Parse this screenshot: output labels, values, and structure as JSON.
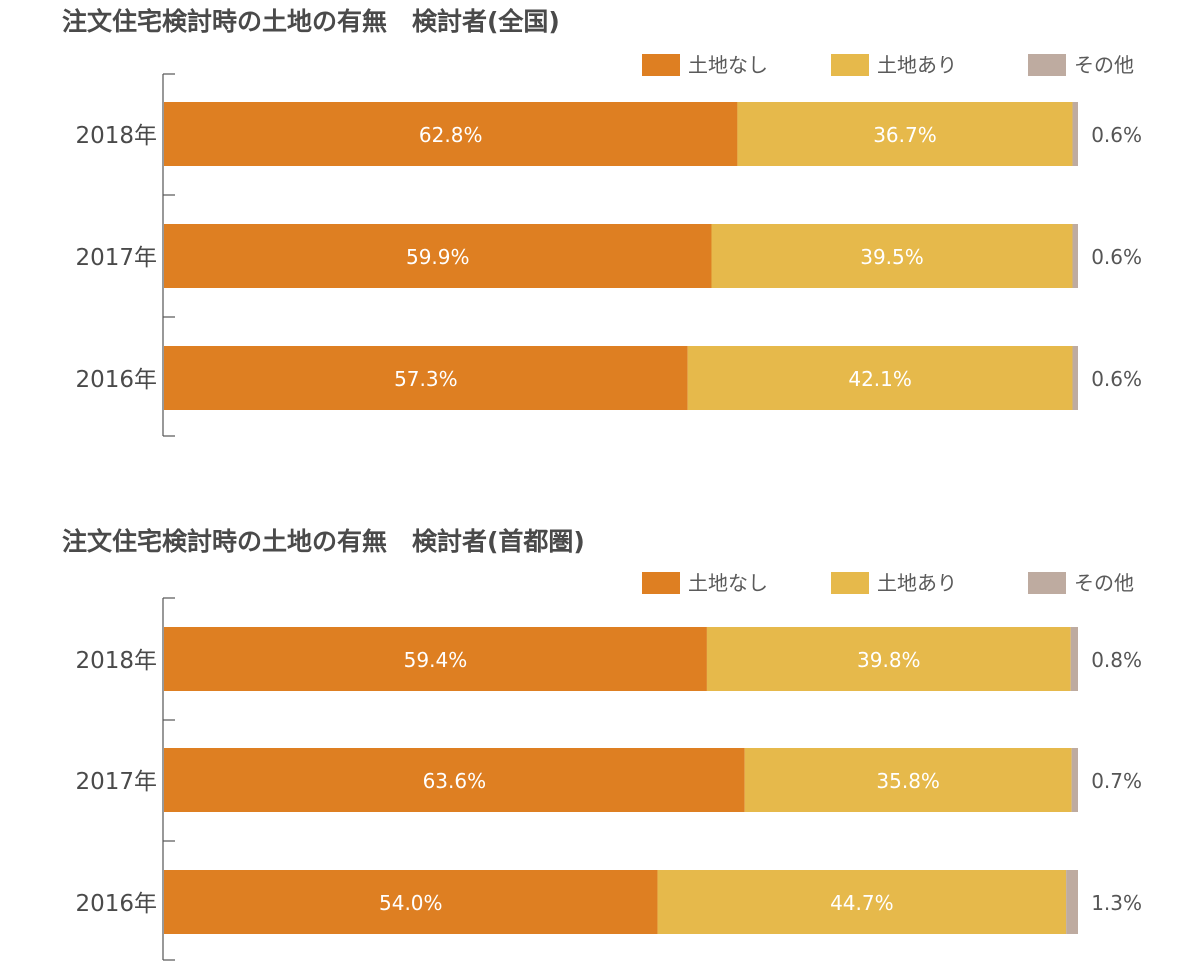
{
  "chart_data": [
    {
      "type": "bar",
      "orientation": "horizontal",
      "stacked": true,
      "title": "注文住宅検討時の土地の有無　検討者(全国)",
      "categories": [
        "2018年",
        "2017年",
        "2016年"
      ],
      "series": [
        {
          "name": "土地なし",
          "color": "#DE7F22",
          "values": [
            62.8,
            59.9,
            57.3
          ],
          "labels": [
            "62.8%",
            "59.9%",
            "57.3%"
          ]
        },
        {
          "name": "土地あり",
          "color": "#E6B94B",
          "values": [
            36.7,
            39.5,
            42.1
          ],
          "labels": [
            "36.7%",
            "39.5%",
            "42.1%"
          ]
        },
        {
          "name": "その他",
          "color": "#BEABA0",
          "values": [
            0.6,
            0.6,
            0.6
          ],
          "labels": [
            "0.6%",
            "0.6%",
            "0.6%"
          ]
        }
      ],
      "xlim": [
        0,
        100
      ],
      "legend": "top-right",
      "grid": false
    },
    {
      "type": "bar",
      "orientation": "horizontal",
      "stacked": true,
      "title": "注文住宅検討時の土地の有無　検討者(首都圏)",
      "categories": [
        "2018年",
        "2017年",
        "2016年"
      ],
      "series": [
        {
          "name": "土地なし",
          "color": "#DE7F22",
          "values": [
            59.4,
            63.6,
            54.0
          ],
          "labels": [
            "59.4%",
            "63.6%",
            "54.0%"
          ]
        },
        {
          "name": "土地あり",
          "color": "#E6B94B",
          "values": [
            39.8,
            35.8,
            44.7
          ],
          "labels": [
            "39.8%",
            "35.8%",
            "44.7%"
          ]
        },
        {
          "name": "その他",
          "color": "#BEABA0",
          "values": [
            0.8,
            0.7,
            1.3
          ],
          "labels": [
            "0.8%",
            "0.7%",
            "1.3%"
          ]
        }
      ],
      "xlim": [
        0,
        100
      ],
      "legend": "top-right",
      "grid": false
    }
  ]
}
